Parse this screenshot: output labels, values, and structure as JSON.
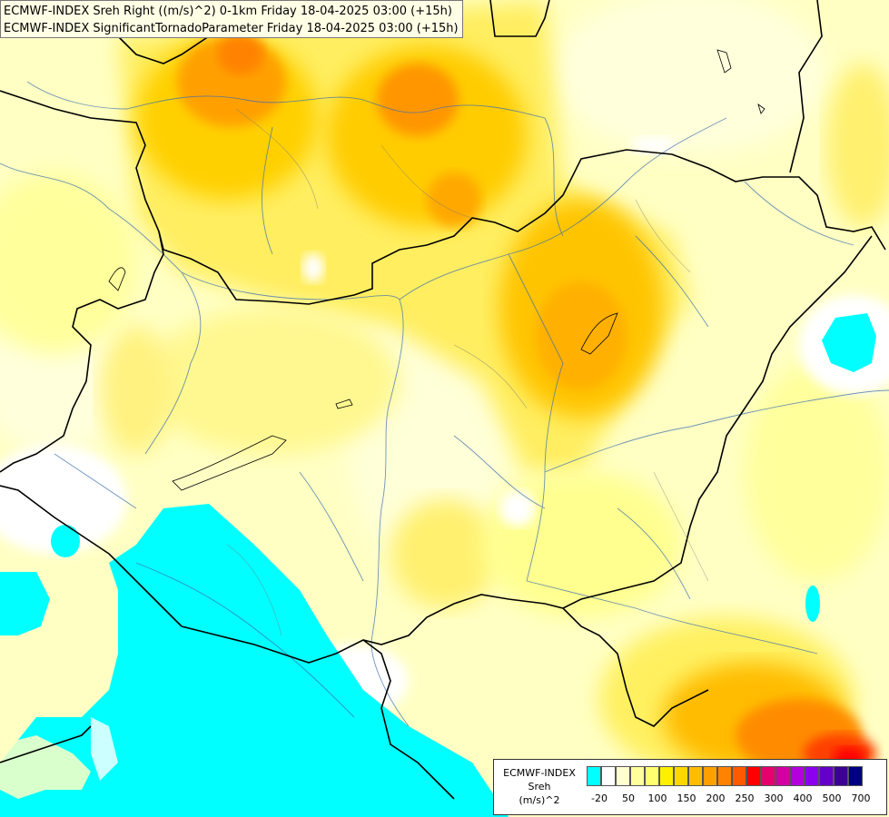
{
  "header": {
    "line1": "ECMWF-INDEX Sreh Right ((m/s)^2) 0-1km Friday 18-04-2025 03:00 (+15h)",
    "line2": "ECMWF-INDEX SignificantTornadoParameter Friday 18-04-2025 03:00 (+15h)"
  },
  "legend": {
    "title_line1": "ECMWF-INDEX",
    "title_line2": "Sreh",
    "title_line3": "(m/s)^2",
    "colors": [
      "#00ffff",
      "#ffffff",
      "#ffffd0",
      "#ffff9c",
      "#ffff70",
      "#fff000",
      "#ffd700",
      "#ffbc00",
      "#ffa000",
      "#ff8200",
      "#ff5a00",
      "#ff0000",
      "#e6006e",
      "#d200a0",
      "#b400dc",
      "#8c00f0",
      "#6400c8",
      "#3c0096",
      "#000082"
    ],
    "ticks": [
      "-20",
      "50",
      "100",
      "150",
      "200",
      "250",
      "300",
      "400",
      "500",
      "700"
    ]
  }
}
